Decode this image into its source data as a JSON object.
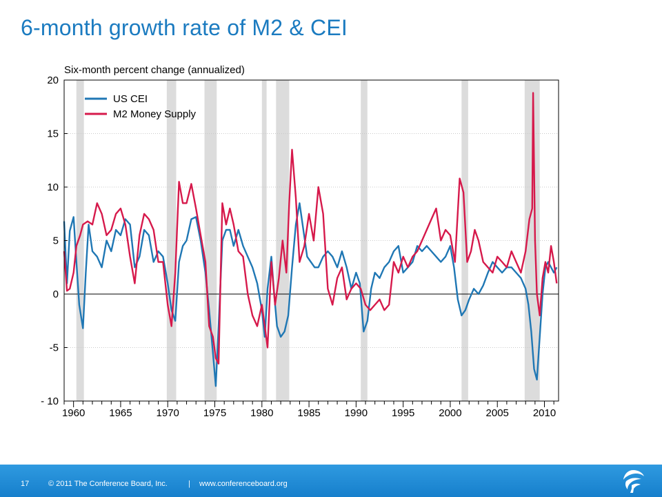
{
  "slide": {
    "title": "6-month growth rate of M2 & CEI"
  },
  "footer": {
    "page_number": "17",
    "copyright": "© 2011 The Conference Board, Inc.",
    "separator": "|",
    "website": "www.conferenceboard.org"
  },
  "chart_data": {
    "type": "line",
    "ylabel": "Six-month percent change (annualized)",
    "ylim": [
      -10,
      20
    ],
    "yticks": [
      20,
      15,
      10,
      5,
      0,
      -5,
      -10
    ],
    "ytick_labels": [
      "20",
      "15",
      "10",
      "5",
      "0",
      "-5",
      "- 10"
    ],
    "xlim": [
      1959,
      2011.5
    ],
    "xticks": [
      1960,
      1965,
      1970,
      1975,
      1980,
      1985,
      1990,
      1995,
      2000,
      2005,
      2010
    ],
    "xtick_labels": [
      "1960",
      "1965",
      "1970",
      "1975",
      "1980",
      "1985",
      "1990",
      "1995",
      "2000",
      "2005",
      "2010"
    ],
    "grid": true,
    "legend_position": "top-left",
    "recessions": [
      [
        1960.3,
        1961.1
      ],
      [
        1969.9,
        1970.9
      ],
      [
        1973.9,
        1975.2
      ],
      [
        1980.0,
        1980.5
      ],
      [
        1981.5,
        1982.9
      ],
      [
        1990.5,
        1991.2
      ],
      [
        2001.2,
        2001.9
      ],
      [
        2007.9,
        2009.5
      ]
    ],
    "colors": {
      "US CEI": "#1f77b4",
      "M2 Money Supply": "#d6194b",
      "recession": "#dcdcdc"
    },
    "series": [
      {
        "name": "US CEI",
        "x": [
          1959.0,
          1959.3,
          1959.6,
          1960.0,
          1960.3,
          1960.6,
          1961.0,
          1961.3,
          1961.6,
          1962.0,
          1962.5,
          1963.0,
          1963.5,
          1964.0,
          1964.5,
          1965.0,
          1965.5,
          1966.0,
          1966.5,
          1967.0,
          1967.5,
          1968.0,
          1968.5,
          1969.0,
          1969.5,
          1970.0,
          1970.4,
          1970.8,
          1971.2,
          1971.6,
          1972.0,
          1972.5,
          1973.0,
          1973.5,
          1974.0,
          1974.4,
          1974.8,
          1975.1,
          1975.4,
          1975.8,
          1976.2,
          1976.6,
          1977.0,
          1977.5,
          1978.0,
          1978.5,
          1979.0,
          1979.5,
          1980.0,
          1980.3,
          1980.6,
          1981.0,
          1981.3,
          1981.6,
          1982.0,
          1982.4,
          1982.8,
          1983.2,
          1983.6,
          1984.0,
          1984.4,
          1984.8,
          1985.2,
          1985.6,
          1986.0,
          1986.5,
          1987.0,
          1987.5,
          1988.0,
          1988.5,
          1989.0,
          1989.5,
          1990.0,
          1990.4,
          1990.8,
          1991.2,
          1991.6,
          1992.0,
          1992.5,
          1993.0,
          1993.5,
          1994.0,
          1994.5,
          1995.0,
          1995.5,
          1996.0,
          1996.5,
          1997.0,
          1997.5,
          1998.0,
          1998.5,
          1999.0,
          1999.5,
          2000.0,
          2000.4,
          2000.8,
          2001.2,
          2001.6,
          2002.0,
          2002.5,
          2003.0,
          2003.5,
          2004.0,
          2004.5,
          2005.0,
          2005.5,
          2006.0,
          2006.5,
          2007.0,
          2007.5,
          2008.0,
          2008.3,
          2008.6,
          2008.9,
          2009.2,
          2009.5,
          2009.8,
          2010.1,
          2010.4,
          2010.7,
          2011.0,
          2011.3
        ],
        "values": [
          6.8,
          1.0,
          5.9,
          7.2,
          3.0,
          -1.0,
          -3.2,
          2.0,
          6.5,
          4.0,
          3.5,
          2.5,
          5.0,
          4.0,
          6.0,
          5.5,
          7.0,
          6.5,
          2.5,
          3.5,
          6.0,
          5.5,
          3.0,
          4.0,
          3.5,
          1.0,
          -1.5,
          -2.5,
          3.0,
          4.5,
          5.0,
          7.0,
          7.2,
          5.0,
          2.0,
          -1.5,
          -5.5,
          -8.6,
          -3.0,
          5.0,
          6.0,
          6.0,
          4.5,
          6.0,
          4.5,
          3.5,
          2.5,
          1.0,
          -1.5,
          -4.0,
          0.5,
          3.5,
          0.0,
          -3.0,
          -4.0,
          -3.5,
          -2.0,
          2.5,
          6.5,
          8.5,
          6.0,
          3.5,
          3.0,
          2.5,
          2.5,
          3.5,
          4.0,
          3.5,
          2.5,
          4.0,
          2.5,
          0.5,
          2.0,
          1.0,
          -3.5,
          -2.5,
          0.5,
          2.0,
          1.5,
          2.5,
          3.0,
          4.0,
          4.5,
          2.0,
          2.5,
          3.0,
          4.5,
          4.0,
          4.5,
          4.0,
          3.5,
          3.0,
          3.5,
          4.5,
          2.5,
          -0.5,
          -2.0,
          -1.5,
          -0.5,
          0.5,
          0.0,
          0.8,
          2.0,
          3.0,
          2.5,
          2.0,
          2.5,
          2.5,
          2.0,
          1.5,
          0.5,
          -1.0,
          -3.5,
          -7.0,
          -8.0,
          -4.0,
          0.0,
          2.5,
          3.0,
          2.5,
          2.0,
          2.5
        ]
      },
      {
        "name": "M2 Money Supply",
        "x": [
          1959.0,
          1959.3,
          1959.6,
          1960.0,
          1960.3,
          1960.7,
          1961.0,
          1961.5,
          1962.0,
          1962.5,
          1963.0,
          1963.5,
          1964.0,
          1964.5,
          1965.0,
          1965.5,
          1966.0,
          1966.5,
          1967.0,
          1967.5,
          1968.0,
          1968.5,
          1969.0,
          1969.5,
          1970.0,
          1970.4,
          1970.8,
          1971.2,
          1971.6,
          1972.0,
          1972.5,
          1973.0,
          1973.5,
          1974.0,
          1974.4,
          1974.8,
          1975.1,
          1975.4,
          1975.8,
          1976.2,
          1976.6,
          1977.0,
          1977.5,
          1978.0,
          1978.5,
          1979.0,
          1979.5,
          1980.0,
          1980.3,
          1980.6,
          1981.0,
          1981.4,
          1981.8,
          1982.2,
          1982.6,
          1982.9,
          1983.2,
          1983.6,
          1984.0,
          1984.5,
          1985.0,
          1985.5,
          1986.0,
          1986.5,
          1987.0,
          1987.5,
          1988.0,
          1988.5,
          1989.0,
          1989.5,
          1990.0,
          1990.5,
          1991.0,
          1991.5,
          1992.0,
          1992.5,
          1993.0,
          1993.5,
          1994.0,
          1994.5,
          1995.0,
          1995.5,
          1996.0,
          1996.5,
          1997.0,
          1997.5,
          1998.0,
          1998.5,
          1999.0,
          1999.5,
          2000.0,
          2000.5,
          2001.0,
          2001.4,
          2001.8,
          2002.2,
          2002.6,
          2003.0,
          2003.5,
          2004.0,
          2004.5,
          2005.0,
          2005.5,
          2006.0,
          2006.5,
          2007.0,
          2007.5,
          2008.0,
          2008.4,
          2008.7,
          2008.8,
          2009.0,
          2009.2,
          2009.5,
          2009.8,
          2010.1,
          2010.4,
          2010.7,
          2011.0,
          2011.3
        ],
        "values": [
          4.0,
          0.3,
          0.5,
          2.0,
          4.5,
          5.5,
          6.5,
          6.8,
          6.5,
          8.5,
          7.5,
          5.5,
          6.0,
          7.5,
          8.0,
          6.5,
          3.5,
          1.0,
          5.5,
          7.5,
          7.0,
          6.0,
          3.0,
          3.0,
          -1.0,
          -3.0,
          2.0,
          10.5,
          8.5,
          8.5,
          10.3,
          8.0,
          5.5,
          3.0,
          -3.0,
          -4.0,
          -6.0,
          -6.5,
          8.5,
          6.5,
          8.0,
          6.5,
          4.0,
          3.5,
          0.0,
          -2.0,
          -3.0,
          -1.0,
          -3.0,
          -5.0,
          3.0,
          -1.0,
          1.5,
          5.0,
          2.0,
          8.5,
          13.5,
          9.0,
          3.0,
          4.5,
          7.5,
          5.0,
          10.0,
          7.5,
          0.5,
          -1.0,
          1.5,
          2.5,
          -0.5,
          0.5,
          1.0,
          0.5,
          -1.0,
          -1.5,
          -1.0,
          -0.5,
          -1.5,
          -1.0,
          3.0,
          2.0,
          3.5,
          2.5,
          3.5,
          4.0,
          5.0,
          6.0,
          7.0,
          8.0,
          5.0,
          6.0,
          5.5,
          3.0,
          10.8,
          9.5,
          3.0,
          4.0,
          6.0,
          5.0,
          3.0,
          2.5,
          2.0,
          3.5,
          3.0,
          2.5,
          4.0,
          3.0,
          2.0,
          4.0,
          7.0,
          8.0,
          18.8,
          5.0,
          0.0,
          -2.0,
          1.5,
          3.0,
          2.0,
          4.5,
          3.0,
          1.0
        ]
      }
    ]
  }
}
